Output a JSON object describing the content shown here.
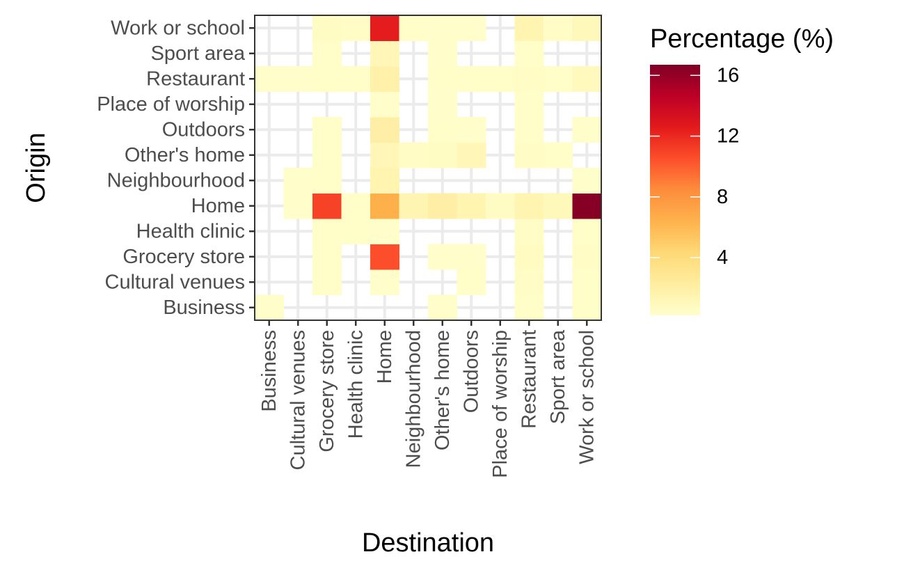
{
  "chart_data": {
    "type": "heatmap",
    "xlabel": "Destination",
    "ylabel": "Origin",
    "x_categories": [
      "Business",
      "Cultural venues",
      "Grocery store",
      "Health clinic",
      "Home",
      "Neighbourhood",
      "Other's home",
      "Outdoors",
      "Place of worship",
      "Restaurant",
      "Sport area",
      "Work or school"
    ],
    "y_categories": [
      "Business",
      "Cultural venues",
      "Grocery store",
      "Health clinic",
      "Home",
      "Neighbourhood",
      "Other's home",
      "Outdoors",
      "Place of worship",
      "Restaurant",
      "Sport area",
      "Work or school"
    ],
    "values": [
      [
        0.3,
        null,
        null,
        null,
        null,
        null,
        0.3,
        null,
        null,
        0.4,
        null,
        0.4
      ],
      [
        null,
        null,
        0.4,
        null,
        0.3,
        null,
        null,
        0.4,
        null,
        0.5,
        null,
        0.4
      ],
      [
        null,
        null,
        0.4,
        null,
        10.5,
        null,
        0.3,
        0.3,
        null,
        0.7,
        null,
        0.5
      ],
      [
        null,
        null,
        0.4,
        0.4,
        0.3,
        null,
        null,
        null,
        null,
        0.5,
        null,
        0.4
      ],
      [
        null,
        0.3,
        11.0,
        0.4,
        6.5,
        1.4,
        2.0,
        1.5,
        0.6,
        1.5,
        1.0,
        16.5
      ],
      [
        null,
        0.3,
        0.4,
        null,
        1.5,
        null,
        null,
        null,
        null,
        null,
        null,
        0.3
      ],
      [
        null,
        null,
        0.4,
        null,
        1.2,
        0.5,
        0.6,
        1.2,
        null,
        0.5,
        0.4,
        null
      ],
      [
        null,
        null,
        0.4,
        null,
        2.0,
        null,
        0.4,
        0.3,
        null,
        0.4,
        null,
        0.3
      ],
      [
        null,
        null,
        null,
        null,
        0.3,
        null,
        0.3,
        null,
        null,
        0.4,
        null,
        null
      ],
      [
        0.3,
        0.3,
        0.4,
        0.4,
        1.8,
        null,
        0.4,
        0.4,
        0.4,
        0.5,
        0.4,
        0.9
      ],
      [
        null,
        null,
        0.4,
        null,
        1.2,
        null,
        0.3,
        null,
        null,
        0.4,
        null,
        null
      ],
      [
        null,
        null,
        0.6,
        0.5,
        12.5,
        0.4,
        0.3,
        0.3,
        null,
        1.5,
        0.5,
        1.0
      ]
    ],
    "colorbar": {
      "title": "Percentage (%)",
      "min": 0.2,
      "max": 16.7,
      "ticks": [
        4,
        8,
        12,
        16
      ],
      "tick_labels": [
        "4",
        "8",
        "12",
        "16"
      ],
      "palette": "YlOrRd",
      "colors": [
        "#FFFFCC",
        "#FFEDA0",
        "#FED976",
        "#FEB24C",
        "#FD8D3C",
        "#FC4E2A",
        "#E31A1C",
        "#BD0026",
        "#800026"
      ]
    },
    "grid": true,
    "legend_position": "right"
  }
}
